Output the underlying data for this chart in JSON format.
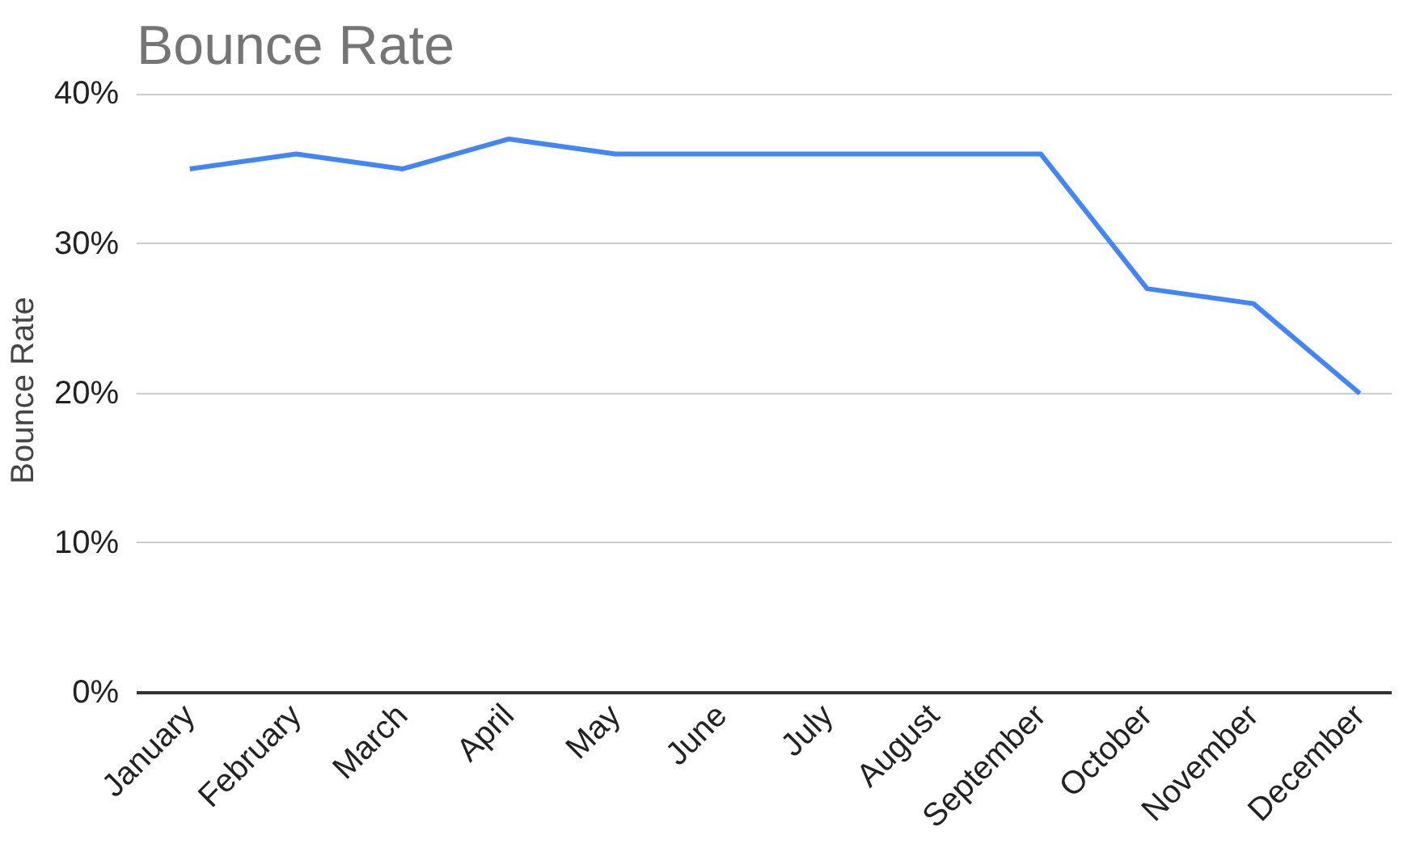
{
  "chart_data": {
    "type": "line",
    "title": "Bounce Rate",
    "ylabel": "Bounce Rate",
    "categories": [
      "January",
      "February",
      "March",
      "April",
      "May",
      "June",
      "July",
      "August",
      "September",
      "October",
      "November",
      "December"
    ],
    "series": [
      {
        "color": "#4285f4",
        "values": [
          35,
          36,
          35,
          37,
          36,
          36,
          36,
          36,
          36,
          27,
          26,
          20
        ]
      }
    ],
    "ylim": [
      0,
      40
    ],
    "yticks": [
      {
        "value": 0,
        "label": "0%"
      },
      {
        "value": 10,
        "label": "10%"
      },
      {
        "value": 20,
        "label": "20%"
      },
      {
        "value": 30,
        "label": "30%"
      },
      {
        "value": 40,
        "label": "40%"
      }
    ],
    "grid": "y",
    "marker": "none",
    "line_style": "solid"
  }
}
